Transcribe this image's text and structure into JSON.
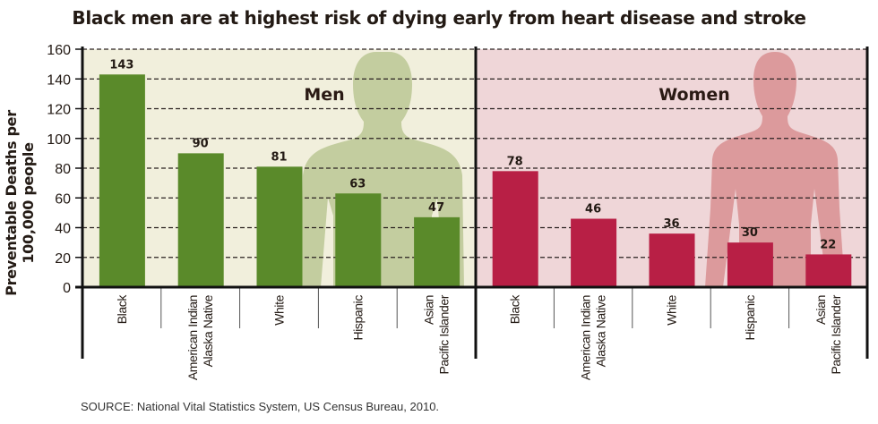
{
  "chart_data": [
    {
      "type": "bar",
      "panel": "Men",
      "title": "Black men are at highest risk of dying early from heart disease and stroke",
      "ylabel": "Preventable Deaths per 100,000 people",
      "categories": [
        "Black",
        "American Indian\nAlaska Native",
        "White",
        "Hispanic",
        "Asian\nPacific Islander"
      ],
      "values": [
        143,
        90,
        81,
        63,
        47
      ],
      "ylim": [
        0,
        160
      ],
      "yticks": [
        0,
        20,
        40,
        60,
        80,
        100,
        120,
        140,
        160
      ],
      "grid": true,
      "bar_color": "#5a8a2a",
      "background": "#f1efdc",
      "silhouette_color": "#c3cd9f"
    },
    {
      "type": "bar",
      "panel": "Women",
      "categories": [
        "Black",
        "American Indian\nAlaska Native",
        "White",
        "Hispanic",
        "Asian\nPacific Islander"
      ],
      "values": [
        78,
        46,
        36,
        30,
        22
      ],
      "ylim": [
        0,
        160
      ],
      "grid": true,
      "bar_color": "#b81f45",
      "background": "#efd6d8",
      "silhouette_color": "#dc9a9c"
    }
  ],
  "source": "SOURCE: National Vital Statistics System, US Census Bureau, 2010."
}
